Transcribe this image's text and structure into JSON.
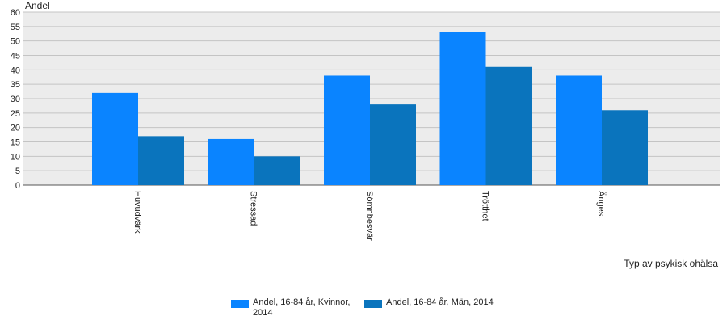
{
  "chart_data": {
    "type": "bar",
    "ylabel": "Andel",
    "xlabel": "Typ av psykisk ohälsa",
    "ylim": [
      0,
      60
    ],
    "yticks": [
      0,
      5,
      10,
      15,
      20,
      25,
      30,
      35,
      40,
      45,
      50,
      55,
      60
    ],
    "grid": true,
    "legend_position": "bottom",
    "categories": [
      "Huvudvärk",
      "Stressad",
      "Sömnbesvär",
      "Trötthet",
      "Ängest"
    ],
    "series": [
      {
        "name": "Andel, 16-84 år, Kvinnor, 2014",
        "color": "#0a84ff",
        "values": [
          32,
          16,
          38,
          53,
          38
        ]
      },
      {
        "name": "Andel, 16-84 år, Män, 2014",
        "color": "#0a74bd",
        "values": [
          17,
          10,
          28,
          41,
          26
        ]
      }
    ]
  }
}
